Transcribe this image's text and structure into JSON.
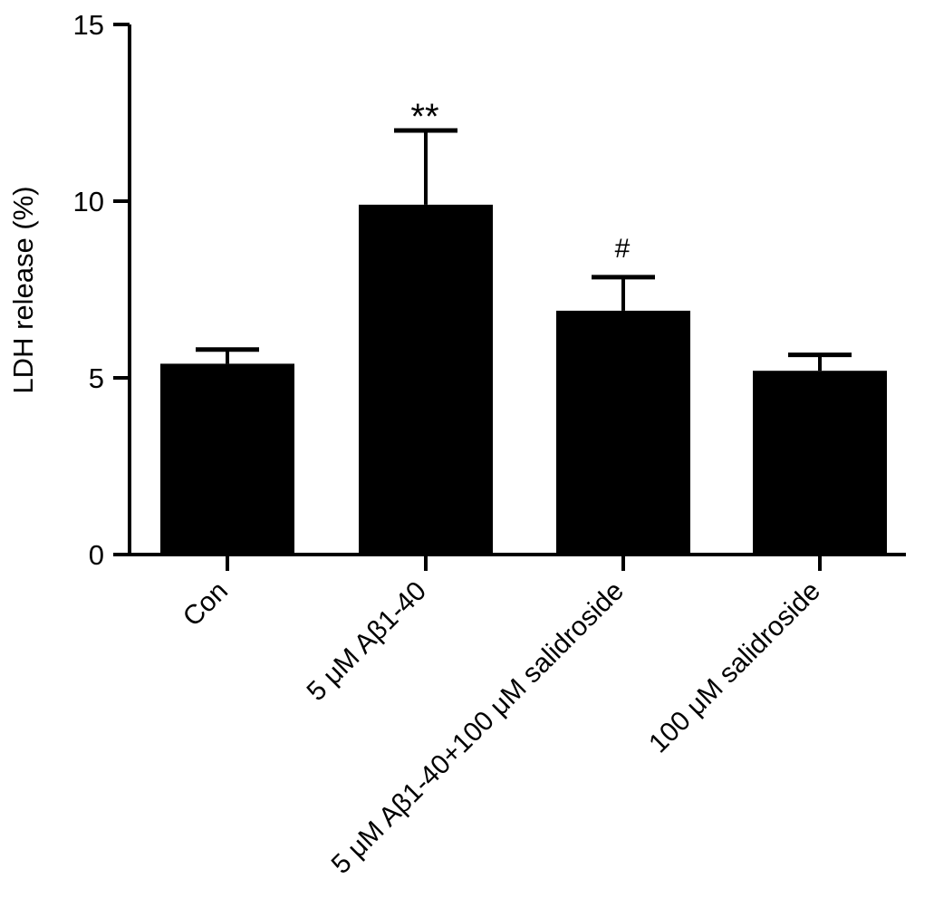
{
  "chart_data": {
    "type": "bar",
    "ylabel": "LDH release (%)",
    "ylim": [
      0,
      15
    ],
    "yticks": [
      0,
      5,
      10,
      15
    ],
    "categories": [
      "Con",
      "5 μM Aβ1-40",
      "5 μM Aβ1-40+100 μM salidroside",
      "100 μM salidroside"
    ],
    "values": [
      5.4,
      9.9,
      6.9,
      5.2
    ],
    "errors": [
      0.4,
      2.1,
      0.95,
      0.45
    ],
    "annotations": [
      "",
      "**",
      "#",
      ""
    ],
    "bar_color": "#000000",
    "grid": false
  }
}
